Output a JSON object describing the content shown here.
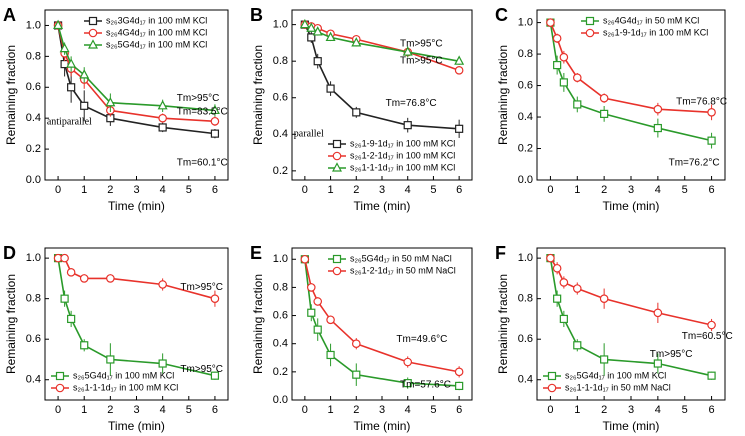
{
  "chart_data": [
    {
      "type": "line",
      "panel": "A",
      "xlabel": "Time (min)",
      "ylabel": "Remaining fraction",
      "x": [
        0,
        0.25,
        0.5,
        1,
        2,
        4,
        6
      ],
      "xlim": [
        -0.5,
        6.5
      ],
      "xticks": [
        0,
        1,
        2,
        3,
        4,
        5,
        6
      ],
      "ylim": [
        0,
        1.1
      ],
      "yticks": [
        {
          "value": 0,
          "label": "0.0"
        },
        0.2,
        0.4,
        0.6,
        0.8,
        {
          "value": 1,
          "label": "1.0"
        }
      ],
      "legend": "upper right",
      "series": [
        {
          "name": "s₂₆3G4d₁₇ in 100 mM KCl",
          "color": "#222222",
          "marker": "square",
          "values": [
            1.0,
            0.75,
            0.6,
            0.48,
            0.4,
            0.34,
            0.3
          ],
          "errors": [
            0.02,
            0.08,
            0.1,
            0.1,
            0.05,
            0.03,
            0.03
          ]
        },
        {
          "name": "s₂₆4G4d₁₇ in 100 mM KCl",
          "color": "#e8322b",
          "marker": "circle",
          "values": [
            1.0,
            0.82,
            0.72,
            0.65,
            0.45,
            0.4,
            0.38
          ],
          "errors": [
            0.02,
            0.05,
            0.05,
            0.06,
            0.04,
            0.03,
            0.03
          ]
        },
        {
          "name": "s₂₆5G4d₁₇ in 100 mM KCl",
          "color": "#2a9a2a",
          "marker": "triangle",
          "values": [
            1.0,
            0.85,
            0.75,
            0.68,
            0.5,
            0.48,
            0.45
          ],
          "errors": [
            0.02,
            0.04,
            0.05,
            0.05,
            0.06,
            0.04,
            0.04
          ]
        }
      ],
      "annotations": [
        {
          "text": "Tm>95°C",
          "color": "#2a9a2a"
        },
        {
          "text": "Tm=83.5°C",
          "color": "#e8322b"
        },
        {
          "text": "Tm=60.1°C",
          "color": "#222222"
        },
        {
          "text": "antiparallel",
          "color": "#1a1ae0"
        }
      ]
    },
    {
      "type": "line",
      "panel": "B",
      "xlabel": "Time (min)",
      "ylabel": "Remaining fraction",
      "x": [
        0,
        0.25,
        0.5,
        1,
        2,
        4,
        6
      ],
      "xlim": [
        -0.5,
        6.5
      ],
      "xticks": [
        0,
        1,
        2,
        3,
        4,
        5,
        6
      ],
      "ylim": [
        0.15,
        1.08
      ],
      "yticks": [
        0.2,
        0.4,
        0.6,
        0.8,
        {
          "value": 1,
          "label": "1.0"
        }
      ],
      "legend": "lower right",
      "series": [
        {
          "name": "s₂₆1-9-1d₁₇ in 100 mM KCl",
          "color": "#222222",
          "marker": "square",
          "values": [
            1.0,
            0.93,
            0.8,
            0.65,
            0.52,
            0.45,
            0.43
          ],
          "errors": [
            0.02,
            0.03,
            0.04,
            0.04,
            0.03,
            0.04,
            0.05
          ]
        },
        {
          "name": "s₂₆1-2-1d₁₇ in 100 mM KCl",
          "color": "#e8322b",
          "marker": "circle",
          "values": [
            1.0,
            0.99,
            0.98,
            0.95,
            0.92,
            0.85,
            0.75
          ],
          "errors": [
            0.01,
            0.02,
            0.02,
            0.02,
            0.02,
            0.02,
            0.02
          ]
        },
        {
          "name": "s₂₆1-1-1d₁₇ in 100 mM KCl",
          "color": "#2a9a2a",
          "marker": "triangle",
          "values": [
            1.0,
            0.98,
            0.96,
            0.93,
            0.9,
            0.85,
            0.8
          ],
          "errors": [
            0.01,
            0.02,
            0.02,
            0.02,
            0.02,
            0.03,
            0.02
          ]
        }
      ],
      "annotations": [
        {
          "text": "Tm>95°C",
          "color": "#2a9a2a"
        },
        {
          "text": "Tm>95°C",
          "color": "#e8322b"
        },
        {
          "text": "Tm=76.8°C",
          "color": "#222222"
        },
        {
          "text": "parallel",
          "color": "#1a1ae0"
        }
      ]
    },
    {
      "type": "line",
      "panel": "C",
      "xlabel": "Time (min)",
      "ylabel": "Remaining fraction",
      "x": [
        0,
        0.25,
        0.5,
        1,
        2,
        4,
        6
      ],
      "xlim": [
        -0.5,
        6.5
      ],
      "xticks": [
        0,
        1,
        2,
        3,
        4,
        5,
        6
      ],
      "ylim": [
        0,
        1.08
      ],
      "yticks": [
        {
          "value": 0,
          "label": "0.0"
        },
        0.2,
        0.4,
        0.6,
        0.8,
        {
          "value": 1,
          "label": "1.0"
        }
      ],
      "legend": "upper right",
      "series": [
        {
          "name": "s₂₆4G4d₁₇ in 50 mM KCl",
          "color": "#2a9a2a",
          "marker": "square",
          "values": [
            1.0,
            0.73,
            0.62,
            0.48,
            0.42,
            0.33,
            0.25
          ],
          "errors": [
            0.02,
            0.06,
            0.06,
            0.05,
            0.05,
            0.06,
            0.05
          ]
        },
        {
          "name": "s₂₆1-9-1d₁₇ in 100 mM KCl",
          "color": "#e8322b",
          "marker": "circle",
          "values": [
            1.0,
            0.9,
            0.78,
            0.65,
            0.52,
            0.45,
            0.43
          ],
          "errors": [
            0.02,
            0.03,
            0.04,
            0.03,
            0.03,
            0.04,
            0.05
          ]
        }
      ],
      "annotations": [
        {
          "text": "Tm=76.8°C",
          "color": "#e8322b"
        },
        {
          "text": "Tm=76.2°C",
          "color": "#2a9a2a"
        }
      ]
    },
    {
      "type": "line",
      "panel": "D",
      "xlabel": "Time (min)",
      "ylabel": "Remaining fraction",
      "x": [
        0,
        0.25,
        0.5,
        1,
        2,
        4,
        6
      ],
      "xlim": [
        -0.5,
        6.5
      ],
      "xticks": [
        0,
        1,
        2,
        3,
        4,
        5,
        6
      ],
      "ylim": [
        0.3,
        1.05
      ],
      "yticks": [
        0.4,
        0.6,
        0.8,
        {
          "value": 1,
          "label": "1.0"
        }
      ],
      "legend": "lower left",
      "series": [
        {
          "name": "s₂₆5G4d₁₇ in 100 mM KCl",
          "color": "#2a9a2a",
          "marker": "square",
          "values": [
            1.0,
            0.8,
            0.7,
            0.57,
            0.5,
            0.48,
            0.42
          ],
          "errors": [
            0.02,
            0.04,
            0.04,
            0.03,
            0.08,
            0.05,
            0.02
          ]
        },
        {
          "name": "s₂₆1-1-1d₁₇ in 100 mM KCl",
          "color": "#e8322b",
          "marker": "circle",
          "values": [
            1.0,
            1.0,
            0.93,
            0.9,
            0.9,
            0.87,
            0.8
          ],
          "errors": [
            0.01,
            0.01,
            0.02,
            0.02,
            0.02,
            0.03,
            0.04
          ]
        }
      ],
      "annotations": [
        {
          "text": "Tm>95°C",
          "color": "#e8322b"
        },
        {
          "text": "Tm>95°C",
          "color": "#2a9a2a"
        }
      ]
    },
    {
      "type": "line",
      "panel": "E",
      "xlabel": "Time (min)",
      "ylabel": "Remaining fraction",
      "x": [
        0,
        0.25,
        0.5,
        1,
        2,
        4,
        6
      ],
      "xlim": [
        -0.5,
        6.5
      ],
      "xticks": [
        0,
        1,
        2,
        3,
        4,
        5,
        6
      ],
      "ylim": [
        0,
        1.08
      ],
      "yticks": [
        {
          "value": 0,
          "label": "0.0"
        },
        0.2,
        0.4,
        0.6,
        0.8,
        {
          "value": 1,
          "label": "1.0"
        }
      ],
      "legend": "upper right",
      "series": [
        {
          "name": "s₂₆5G4d₁₇ in 50 mM NaCl",
          "color": "#2a9a2a",
          "marker": "square",
          "values": [
            1.0,
            0.62,
            0.5,
            0.32,
            0.18,
            0.12,
            0.1
          ],
          "errors": [
            0.02,
            0.06,
            0.08,
            0.08,
            0.08,
            0.04,
            0.03
          ]
        },
        {
          "name": "s₂₆1-2-1d₁₇ in 50 mM NaCl",
          "color": "#e8322b",
          "marker": "circle",
          "values": [
            1.0,
            0.8,
            0.7,
            0.57,
            0.4,
            0.27,
            0.2
          ],
          "errors": [
            0.02,
            0.03,
            0.03,
            0.03,
            0.04,
            0.04,
            0.04
          ]
        }
      ],
      "annotations": [
        {
          "text": "Tm=49.6°C",
          "color": "#e8322b"
        },
        {
          "text": "Tm=57.6°C",
          "color": "#2a9a2a"
        }
      ]
    },
    {
      "type": "line",
      "panel": "F",
      "xlabel": "Time (min)",
      "ylabel": "Remaining fraction",
      "x": [
        0,
        0.25,
        0.5,
        1,
        2,
        4,
        6
      ],
      "xlim": [
        -0.5,
        6.5
      ],
      "xticks": [
        0,
        1,
        2,
        3,
        4,
        5,
        6
      ],
      "ylim": [
        0.3,
        1.05
      ],
      "yticks": [
        0.4,
        0.6,
        0.8,
        {
          "value": 1,
          "label": "1.0"
        }
      ],
      "legend": "lower left",
      "series": [
        {
          "name": "s₂₆5G4d₁₇ in 100 mM KCl",
          "color": "#2a9a2a",
          "marker": "square",
          "values": [
            1.0,
            0.8,
            0.7,
            0.57,
            0.5,
            0.48,
            0.42
          ],
          "errors": [
            0.02,
            0.04,
            0.04,
            0.03,
            0.08,
            0.05,
            0.02
          ]
        },
        {
          "name": "s₂₆1-1-1d₁₇ in 50 mM NaCl",
          "color": "#e8322b",
          "marker": "circle",
          "values": [
            1.0,
            0.95,
            0.88,
            0.85,
            0.8,
            0.73,
            0.67
          ],
          "errors": [
            0.01,
            0.03,
            0.03,
            0.03,
            0.05,
            0.05,
            0.03
          ]
        }
      ],
      "annotations": [
        {
          "text": "Tm=60.5°C",
          "color": "#e8322b"
        },
        {
          "text": "Tm>95°C",
          "color": "#2a9a2a"
        }
      ]
    }
  ]
}
